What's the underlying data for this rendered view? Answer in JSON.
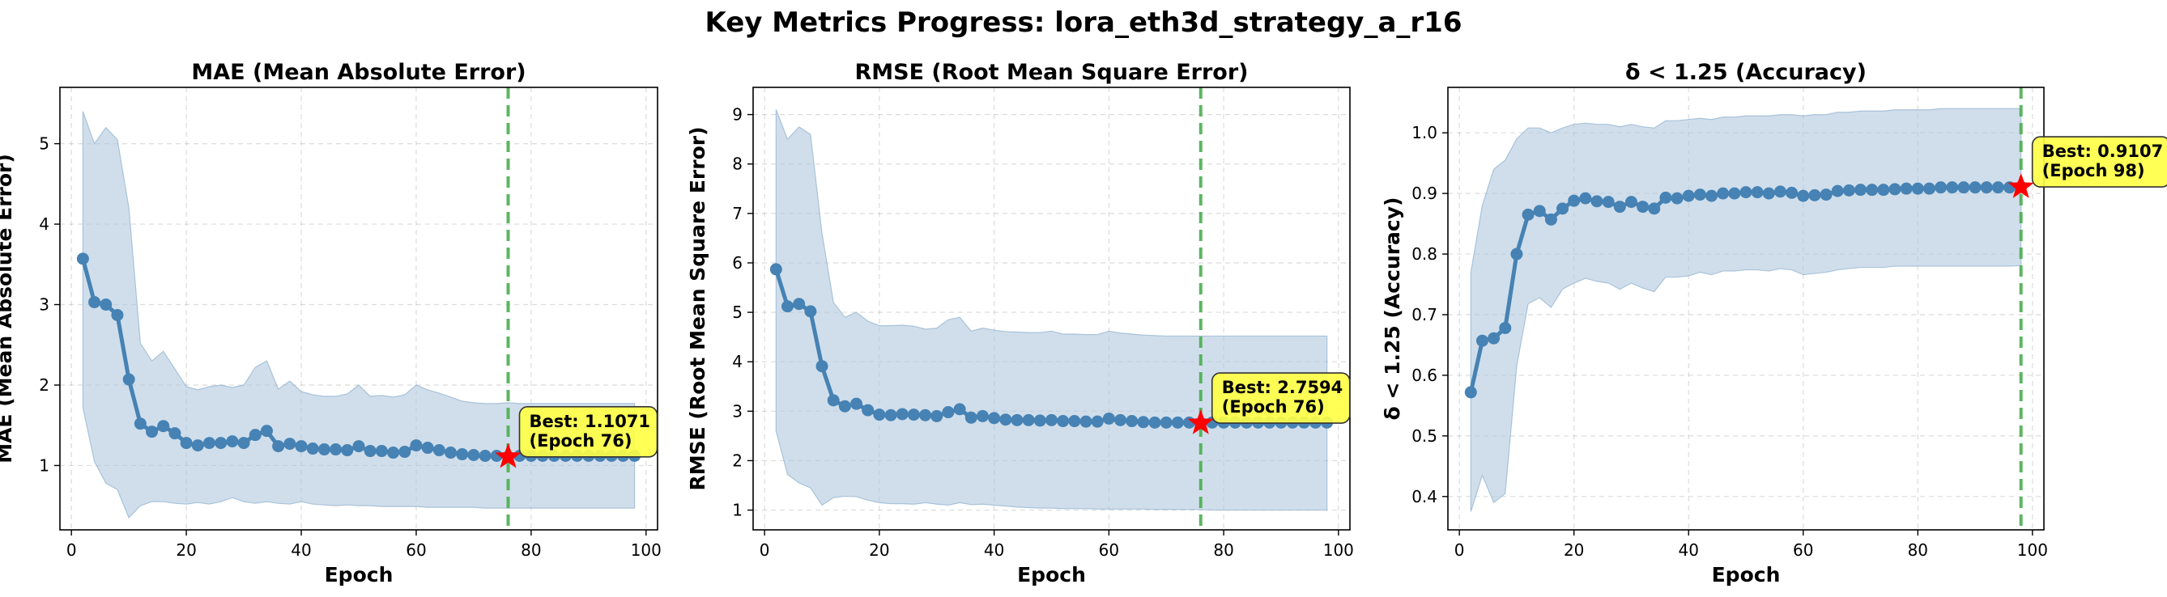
{
  "suptitle": "Key Metrics Progress: lora_eth3d_strategy_a_r16",
  "colors": {
    "line": "#4682b4",
    "band": "#b0c8de",
    "vline": "#4caf50",
    "star": "#ff0000",
    "annotation_bg": "#ffff44"
  },
  "chart_data": [
    {
      "type": "line",
      "title": "MAE (Mean Absolute Error)",
      "xlabel": "Epoch",
      "ylabel": "MAE (Mean Absolute Error)",
      "xlim": [
        -2,
        102
      ],
      "ylim": [
        0.2,
        5.7
      ],
      "xticks": [
        0,
        20,
        40,
        60,
        80,
        100
      ],
      "yticks": [
        1,
        2,
        3,
        4,
        5
      ],
      "grid": true,
      "x": [
        2,
        4,
        6,
        8,
        10,
        12,
        14,
        16,
        18,
        20,
        22,
        24,
        26,
        28,
        30,
        32,
        34,
        36,
        38,
        40,
        42,
        44,
        46,
        48,
        50,
        52,
        54,
        56,
        58,
        60,
        62,
        64,
        66,
        68,
        70,
        72,
        74,
        76,
        78,
        80,
        82,
        84,
        86,
        88,
        90,
        92,
        94,
        96,
        98
      ],
      "y": [
        3.57,
        3.03,
        3.0,
        2.87,
        2.07,
        1.52,
        1.42,
        1.49,
        1.4,
        1.28,
        1.25,
        1.28,
        1.28,
        1.3,
        1.28,
        1.38,
        1.43,
        1.24,
        1.27,
        1.24,
        1.21,
        1.2,
        1.2,
        1.19,
        1.24,
        1.18,
        1.18,
        1.16,
        1.17,
        1.25,
        1.22,
        1.19,
        1.16,
        1.14,
        1.13,
        1.12,
        1.12,
        1.11,
        1.12,
        1.12,
        1.12,
        1.12,
        1.12,
        1.12,
        1.12,
        1.12,
        1.12,
        1.12,
        1.12
      ],
      "band_upper": [
        5.4,
        5.0,
        5.2,
        5.05,
        4.2,
        2.52,
        2.3,
        2.42,
        2.2,
        1.98,
        1.94,
        1.98,
        2.0,
        1.97,
        2.0,
        2.22,
        2.3,
        1.95,
        2.05,
        1.92,
        1.88,
        1.86,
        1.86,
        1.89,
        2.0,
        1.86,
        1.87,
        1.85,
        1.88,
        2.0,
        1.94,
        1.9,
        1.85,
        1.8,
        1.78,
        1.77,
        1.77,
        1.78,
        1.77,
        1.77,
        1.77,
        1.77,
        1.77,
        1.77,
        1.77,
        1.77,
        1.77,
        1.77,
        1.77
      ],
      "band_lower": [
        1.72,
        1.05,
        0.78,
        0.7,
        0.35,
        0.5,
        0.55,
        0.55,
        0.53,
        0.52,
        0.54,
        0.52,
        0.55,
        0.6,
        0.55,
        0.53,
        0.55,
        0.53,
        0.52,
        0.55,
        0.52,
        0.51,
        0.5,
        0.51,
        0.5,
        0.5,
        0.49,
        0.49,
        0.49,
        0.49,
        0.48,
        0.48,
        0.48,
        0.48,
        0.48,
        0.47,
        0.47,
        0.47,
        0.47,
        0.47,
        0.47,
        0.47,
        0.47,
        0.47,
        0.47,
        0.47,
        0.47,
        0.47,
        0.47
      ],
      "best_epoch": 76,
      "best_value": 1.1071,
      "annotation_line1": "Best: 1.1071",
      "annotation_line2": "(Epoch 76)"
    },
    {
      "type": "line",
      "title": "RMSE (Root Mean Square Error)",
      "xlabel": "Epoch",
      "ylabel": "RMSE (Root Mean Square Error)",
      "xlim": [
        -2,
        102
      ],
      "ylim": [
        0.6,
        9.55
      ],
      "xticks": [
        0,
        20,
        40,
        60,
        80,
        100
      ],
      "yticks": [
        1,
        2,
        3,
        4,
        5,
        6,
        7,
        8,
        9
      ],
      "grid": true,
      "x": [
        2,
        4,
        6,
        8,
        10,
        12,
        14,
        16,
        18,
        20,
        22,
        24,
        26,
        28,
        30,
        32,
        34,
        36,
        38,
        40,
        42,
        44,
        46,
        48,
        50,
        52,
        54,
        56,
        58,
        60,
        62,
        64,
        66,
        68,
        70,
        72,
        74,
        76,
        78,
        80,
        82,
        84,
        86,
        88,
        90,
        92,
        94,
        96,
        98
      ],
      "y": [
        5.87,
        5.12,
        5.17,
        5.02,
        3.91,
        3.22,
        3.1,
        3.15,
        3.02,
        2.93,
        2.92,
        2.94,
        2.93,
        2.92,
        2.9,
        2.98,
        3.04,
        2.87,
        2.9,
        2.86,
        2.83,
        2.82,
        2.82,
        2.81,
        2.82,
        2.8,
        2.8,
        2.79,
        2.79,
        2.85,
        2.82,
        2.8,
        2.78,
        2.77,
        2.77,
        2.77,
        2.77,
        2.76,
        2.77,
        2.77,
        2.77,
        2.77,
        2.77,
        2.77,
        2.77,
        2.77,
        2.77,
        2.77,
        2.77
      ],
      "band_upper": [
        9.1,
        8.5,
        8.75,
        8.6,
        6.6,
        5.2,
        4.9,
        5.0,
        4.82,
        4.73,
        4.73,
        4.74,
        4.72,
        4.66,
        4.68,
        4.85,
        4.9,
        4.62,
        4.68,
        4.64,
        4.61,
        4.6,
        4.59,
        4.59,
        4.62,
        4.56,
        4.56,
        4.55,
        4.55,
        4.62,
        4.58,
        4.56,
        4.54,
        4.53,
        4.52,
        4.52,
        4.52,
        4.52,
        4.52,
        4.52,
        4.52,
        4.52,
        4.52,
        4.52,
        4.52,
        4.52,
        4.52,
        4.52,
        4.52
      ],
      "band_lower": [
        2.6,
        1.72,
        1.55,
        1.45,
        1.1,
        1.25,
        1.28,
        1.27,
        1.2,
        1.15,
        1.13,
        1.13,
        1.12,
        1.15,
        1.12,
        1.1,
        1.15,
        1.11,
        1.12,
        1.1,
        1.08,
        1.06,
        1.05,
        1.04,
        1.04,
        1.03,
        1.03,
        1.03,
        1.02,
        1.02,
        1.02,
        1.02,
        1.02,
        1.01,
        1.01,
        1.01,
        1.01,
        1.01,
        1.0,
        1.0,
        1.0,
        1.0,
        1.0,
        1.0,
        1.0,
        1.0,
        1.0,
        1.0,
        1.0
      ],
      "best_epoch": 76,
      "best_value": 2.7594,
      "annotation_line1": "Best: 2.7594",
      "annotation_line2": "(Epoch 76)"
    },
    {
      "type": "line",
      "title": "δ < 1.25 (Accuracy)",
      "xlabel": "Epoch",
      "ylabel": "δ < 1.25 (Accuracy)",
      "xlim": [
        -2,
        102
      ],
      "ylim": [
        0.345,
        1.075
      ],
      "xticks": [
        0,
        20,
        40,
        60,
        80,
        100
      ],
      "yticks": [
        0.4,
        0.5,
        0.6,
        0.7,
        0.8,
        0.9,
        1.0
      ],
      "grid": true,
      "x": [
        2,
        4,
        6,
        8,
        10,
        12,
        14,
        16,
        18,
        20,
        22,
        24,
        26,
        28,
        30,
        32,
        34,
        36,
        38,
        40,
        42,
        44,
        46,
        48,
        50,
        52,
        54,
        56,
        58,
        60,
        62,
        64,
        66,
        68,
        70,
        72,
        74,
        76,
        78,
        80,
        82,
        84,
        86,
        88,
        90,
        92,
        94,
        96,
        98
      ],
      "y": [
        0.572,
        0.657,
        0.661,
        0.678,
        0.8,
        0.865,
        0.871,
        0.857,
        0.875,
        0.888,
        0.892,
        0.887,
        0.886,
        0.878,
        0.886,
        0.878,
        0.875,
        0.893,
        0.892,
        0.896,
        0.898,
        0.896,
        0.9,
        0.9,
        0.902,
        0.902,
        0.9,
        0.903,
        0.901,
        0.896,
        0.897,
        0.898,
        0.904,
        0.905,
        0.906,
        0.906,
        0.906,
        0.907,
        0.908,
        0.908,
        0.908,
        0.91,
        0.91,
        0.91,
        0.91,
        0.91,
        0.91,
        0.91,
        0.911
      ],
      "band_upper": [
        0.77,
        0.88,
        0.94,
        0.955,
        0.99,
        1.008,
        1.008,
        1.0,
        1.008,
        1.014,
        1.016,
        1.014,
        1.014,
        1.01,
        1.014,
        1.01,
        1.008,
        1.02,
        1.02,
        1.022,
        1.024,
        1.022,
        1.026,
        1.026,
        1.028,
        1.028,
        1.028,
        1.03,
        1.03,
        1.028,
        1.03,
        1.03,
        1.034,
        1.034,
        1.036,
        1.036,
        1.036,
        1.038,
        1.038,
        1.038,
        1.038,
        1.04,
        1.04,
        1.04,
        1.04,
        1.04,
        1.04,
        1.04,
        1.04
      ],
      "band_lower": [
        0.375,
        0.435,
        0.39,
        0.405,
        0.615,
        0.718,
        0.728,
        0.712,
        0.742,
        0.752,
        0.76,
        0.755,
        0.752,
        0.742,
        0.752,
        0.744,
        0.738,
        0.762,
        0.762,
        0.764,
        0.77,
        0.766,
        0.772,
        0.772,
        0.774,
        0.774,
        0.772,
        0.776,
        0.774,
        0.766,
        0.768,
        0.77,
        0.774,
        0.776,
        0.778,
        0.778,
        0.778,
        0.78,
        0.78,
        0.78,
        0.78,
        0.78,
        0.78,
        0.78,
        0.78,
        0.78,
        0.78,
        0.78,
        0.781
      ],
      "best_epoch": 98,
      "best_value": 0.9107,
      "annotation_line1": "Best: 0.9107",
      "annotation_line2": "(Epoch 98)"
    }
  ]
}
